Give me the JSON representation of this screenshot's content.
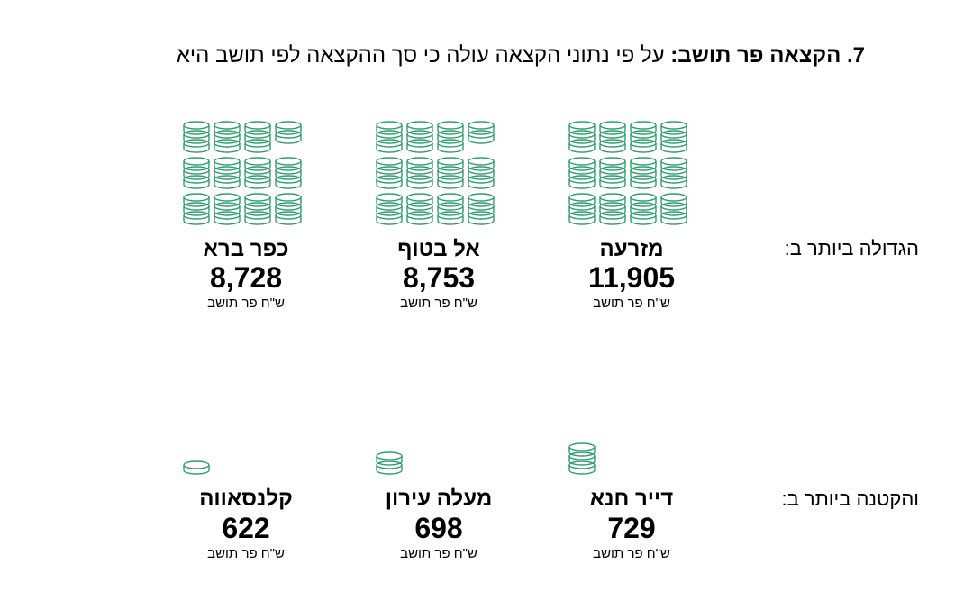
{
  "heading": {
    "bold": "7. הקצאה פר תושב:",
    "rest": " על פי נתוני הקצאה עולה כי סך ההקצאה לפי תושב היא"
  },
  "unit_label": "ש\"ח פר תושב",
  "icon": {
    "stroke": "#2f9e6f",
    "stroke_width": 1.4,
    "fill": "none",
    "large_coin_stack": 3,
    "small_coin_stack": 2,
    "tiny_coin_stack": 1,
    "coin_rx": 14,
    "coin_ry": 4
  },
  "rows": [
    {
      "label": "הגדולה ביותר ב:",
      "cells": [
        {
          "name": "מזרעה",
          "value": "11,905",
          "coins_large": 12,
          "coins_small": 0
        },
        {
          "name": "אל בטוף",
          "value": "8,753",
          "coins_large": 11,
          "coins_small": 1
        },
        {
          "name": "כפר ברא",
          "value": "8,728",
          "coins_large": 11,
          "coins_small": 1
        }
      ]
    },
    {
      "label": "והקטנה ביותר ב:",
      "cells": [
        {
          "name": "דייר חנא",
          "value": "729",
          "coins_large": 0,
          "coins_small": 1,
          "small_stack": 3
        },
        {
          "name": "מעלה עירון",
          "value": "698",
          "coins_large": 0,
          "coins_small": 1,
          "small_stack": 2
        },
        {
          "name": "קלנסאווה",
          "value": "622",
          "coins_large": 0,
          "coins_small": 1,
          "small_stack": 1
        }
      ]
    }
  ],
  "colors": {
    "background": "#ffffff",
    "text": "#000000"
  }
}
